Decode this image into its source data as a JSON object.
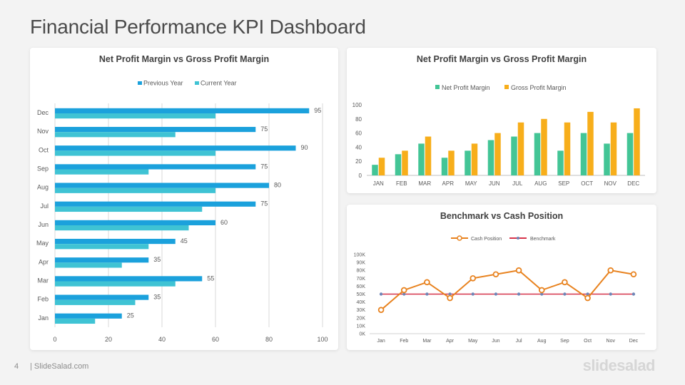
{
  "page": {
    "title": "Financial Performance KPI Dashboard",
    "page_number": "4",
    "footer_site": "| SlideSalad.com",
    "brand": "slidesalad"
  },
  "chart_data": [
    {
      "type": "bar",
      "orientation": "horizontal",
      "title": "Net Profit Margin vs Gross Profit Margin",
      "categories": [
        "Jan",
        "Feb",
        "Mar",
        "Apr",
        "May",
        "Jun",
        "Jul",
        "Aug",
        "Sep",
        "Oct",
        "Nov",
        "Dec"
      ],
      "series": [
        {
          "name": "Previous Year",
          "color": "#1ba1dc",
          "values": [
            25,
            35,
            55,
            35,
            45,
            60,
            75,
            80,
            75,
            90,
            75,
            95
          ]
        },
        {
          "name": "Current Year",
          "color": "#3fc3d4",
          "values": [
            15,
            30,
            45,
            25,
            35,
            50,
            55,
            60,
            35,
            60,
            45,
            60
          ]
        }
      ],
      "xlim": [
        0,
        100
      ],
      "xticks": [
        "0",
        "20",
        "40",
        "60",
        "80",
        "100"
      ],
      "data_labels_series": "Previous Year",
      "legend": "top",
      "grid": true
    },
    {
      "type": "bar",
      "title": "Net Profit Margin vs Gross Profit Margin",
      "categories": [
        "JAN",
        "FEB",
        "MAR",
        "APR",
        "MAY",
        "JUN",
        "JUL",
        "AUG",
        "SEP",
        "OCT",
        "NOV",
        "DEC"
      ],
      "series": [
        {
          "name": "Net Profit Margin",
          "color": "#43c596",
          "values": [
            15,
            30,
            45,
            25,
            35,
            50,
            55,
            60,
            35,
            60,
            45,
            60
          ]
        },
        {
          "name": "Gross Profit Margin",
          "color": "#f7ae1b",
          "values": [
            25,
            35,
            55,
            35,
            45,
            60,
            75,
            80,
            75,
            90,
            75,
            95
          ]
        }
      ],
      "ylim": [
        0,
        100
      ],
      "yticks": [
        "0",
        "20",
        "40",
        "60",
        "80",
        "100"
      ],
      "legend": "top",
      "grid": false
    },
    {
      "type": "line",
      "title": "Benchmark vs Cash Position",
      "categories": [
        "Jan",
        "Feb",
        "Mar",
        "Apr",
        "May",
        "Jun",
        "Jul",
        "Aug",
        "Sep",
        "Oct",
        "Nov",
        "Dec"
      ],
      "series": [
        {
          "name": "Cash Position",
          "color": "#e8821e",
          "values": [
            30000,
            55000,
            65000,
            45000,
            70000,
            75000,
            80000,
            55000,
            65000,
            45000,
            80000,
            75000
          ]
        },
        {
          "name": "Benchmark",
          "color": "#d6344a",
          "marker_color": "#6f86b7",
          "values": [
            50000,
            50000,
            50000,
            50000,
            50000,
            50000,
            50000,
            50000,
            50000,
            50000,
            50000,
            50000
          ]
        }
      ],
      "ylim": [
        0,
        100000
      ],
      "yticks": [
        "0K",
        "10K",
        "20K",
        "30K",
        "40K",
        "50K",
        "60K",
        "70K",
        "80K",
        "90K",
        "100K"
      ],
      "legend": "top",
      "grid": false
    }
  ]
}
